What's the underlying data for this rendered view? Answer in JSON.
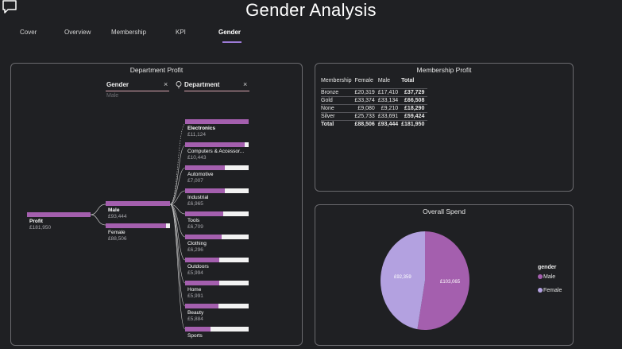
{
  "page": {
    "title": "Gender Analysis"
  },
  "tabs": [
    "Cover",
    "Overview",
    "Membership",
    "KPI",
    "Gender"
  ],
  "department_profit": {
    "title": "Department Profit",
    "slicers": {
      "gender": {
        "label": "Gender",
        "value": "Male",
        "clear": "×"
      },
      "department": {
        "label": "Department",
        "clear": "×"
      }
    },
    "root": {
      "name": "Profit",
      "value": "£181,950"
    },
    "genders": [
      {
        "name": "Male",
        "value": "£93,444"
      },
      {
        "name": "Female",
        "value": "£88,506"
      }
    ],
    "departments": [
      {
        "name": "Electronics",
        "value": "£11,124",
        "share": 1.0
      },
      {
        "name": "Computers & Accessor...",
        "value": "£10,443",
        "share": 0.94
      },
      {
        "name": "Automotive",
        "value": "£7,007",
        "share": 0.63
      },
      {
        "name": "Industrial",
        "value": "£6,965",
        "share": 0.63
      },
      {
        "name": "Tools",
        "value": "£6,709",
        "share": 0.6
      },
      {
        "name": "Clothing",
        "value": "£6,296",
        "share": 0.57
      },
      {
        "name": "Outdoors",
        "value": "£5,994",
        "share": 0.54
      },
      {
        "name": "Home",
        "value": "£5,991",
        "share": 0.54
      },
      {
        "name": "Beauty",
        "value": "£5,884",
        "share": 0.53
      },
      {
        "name": "Sports",
        "value": "",
        "share": 0.4
      }
    ]
  },
  "membership_profit": {
    "title": "Membership Profit",
    "headers": [
      "Membership",
      "Female",
      "Male",
      "Total"
    ],
    "rows": [
      [
        "Bronze",
        "£20,319",
        "£17,410",
        "£37,729"
      ],
      [
        "Gold",
        "£33,374",
        "£33,134",
        "£66,508"
      ],
      [
        "None",
        "£9,080",
        "£9,210",
        "£18,290"
      ],
      [
        "Silver",
        "£25,733",
        "£33,691",
        "£59,424"
      ],
      [
        "Total",
        "£88,506",
        "£93,444",
        "£181,950"
      ]
    ]
  },
  "overall_spend": {
    "title": "Overall Spend",
    "legend_title": "gender",
    "colors": {
      "male": "#a45fae",
      "female": "#b3a1e0"
    }
  },
  "chart_data": {
    "type": "pie",
    "title": "Overall Spend",
    "categories": [
      "Male",
      "Female"
    ],
    "values": [
      103065,
      92359
    ],
    "labels": [
      "£103,065",
      "£92,359"
    ],
    "legend_title": "gender"
  }
}
